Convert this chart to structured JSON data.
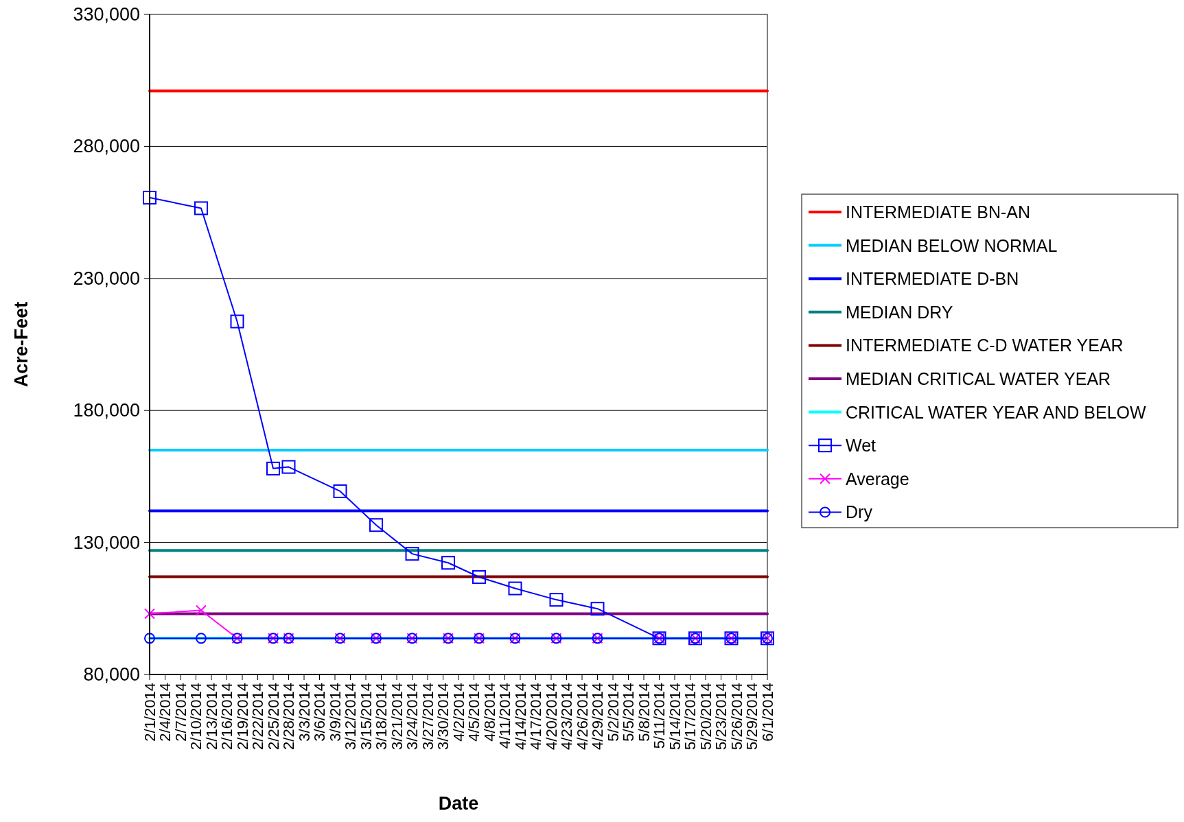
{
  "chart_data": {
    "type": "line",
    "xlabel": "Date",
    "ylabel": "Acre-Feet",
    "ylim": [
      80000,
      330000
    ],
    "yticks": [
      {
        "value": 80000,
        "label": "80,000"
      },
      {
        "value": 130000,
        "label": "130,000"
      },
      {
        "value": 180000,
        "label": "180,000"
      },
      {
        "value": 230000,
        "label": "230,000"
      },
      {
        "value": 280000,
        "label": "280,000"
      },
      {
        "value": 330000,
        "label": "330,000"
      }
    ],
    "xlim": [
      "2014-02-01",
      "2014-06-01"
    ],
    "xticks": [
      {
        "value": "2014-02-01",
        "label": "2/1/2014"
      },
      {
        "value": "2014-02-04",
        "label": "2/4/2014"
      },
      {
        "value": "2014-02-07",
        "label": "2/7/2014"
      },
      {
        "value": "2014-02-10",
        "label": "2/10/2014"
      },
      {
        "value": "2014-02-13",
        "label": "2/13/2014"
      },
      {
        "value": "2014-02-16",
        "label": "2/16/2014"
      },
      {
        "value": "2014-02-19",
        "label": "2/19/2014"
      },
      {
        "value": "2014-02-22",
        "label": "2/22/2014"
      },
      {
        "value": "2014-02-25",
        "label": "2/25/2014"
      },
      {
        "value": "2014-02-28",
        "label": "2/28/2014"
      },
      {
        "value": "2014-03-03",
        "label": "3/3/2014"
      },
      {
        "value": "2014-03-06",
        "label": "3/6/2014"
      },
      {
        "value": "2014-03-09",
        "label": "3/9/2014"
      },
      {
        "value": "2014-03-12",
        "label": "3/12/2014"
      },
      {
        "value": "2014-03-15",
        "label": "3/15/2014"
      },
      {
        "value": "2014-03-18",
        "label": "3/18/2014"
      },
      {
        "value": "2014-03-21",
        "label": "3/21/2014"
      },
      {
        "value": "2014-03-24",
        "label": "3/24/2014"
      },
      {
        "value": "2014-03-27",
        "label": "3/27/2014"
      },
      {
        "value": "2014-03-30",
        "label": "3/30/2014"
      },
      {
        "value": "2014-04-02",
        "label": "4/2/2014"
      },
      {
        "value": "2014-04-05",
        "label": "4/5/2014"
      },
      {
        "value": "2014-04-08",
        "label": "4/8/2014"
      },
      {
        "value": "2014-04-11",
        "label": "4/11/2014"
      },
      {
        "value": "2014-04-14",
        "label": "4/14/2014"
      },
      {
        "value": "2014-04-17",
        "label": "4/17/2014"
      },
      {
        "value": "2014-04-20",
        "label": "4/20/2014"
      },
      {
        "value": "2014-04-23",
        "label": "4/23/2014"
      },
      {
        "value": "2014-04-26",
        "label": "4/26/2014"
      },
      {
        "value": "2014-04-29",
        "label": "4/29/2014"
      },
      {
        "value": "2014-05-02",
        "label": "5/2/2014"
      },
      {
        "value": "2014-05-05",
        "label": "5/5/2014"
      },
      {
        "value": "2014-05-08",
        "label": "5/8/2014"
      },
      {
        "value": "2014-05-11",
        "label": "5/11/2014"
      },
      {
        "value": "2014-05-14",
        "label": "5/14/2014"
      },
      {
        "value": "2014-05-17",
        "label": "5/17/2014"
      },
      {
        "value": "2014-05-20",
        "label": "5/20/2014"
      },
      {
        "value": "2014-05-23",
        "label": "5/23/2014"
      },
      {
        "value": "2014-05-26",
        "label": "5/26/2014"
      },
      {
        "value": "2014-05-29",
        "label": "5/29/2014"
      },
      {
        "value": "2014-06-01",
        "label": "6/1/2014"
      }
    ],
    "grid": "y",
    "legend": "right",
    "x": [
      "2014-02-01",
      "2014-02-11",
      "2014-02-18",
      "2014-02-25",
      "2014-02-28",
      "2014-03-10",
      "2014-03-17",
      "2014-03-24",
      "2014-03-31",
      "2014-04-06",
      "2014-04-13",
      "2014-04-21",
      "2014-04-29",
      "2014-05-11",
      "2014-05-18",
      "2014-05-25",
      "2014-06-01"
    ],
    "series": [
      {
        "name": "INTERMEDIATE BN-AN",
        "color": "#ff0000",
        "marker": "none",
        "x": [
          "2014-02-01",
          "2014-06-01"
        ],
        "values": [
          301000,
          301000
        ]
      },
      {
        "name": "MEDIAN BELOW NORMAL",
        "color": "#00ccff",
        "marker": "none",
        "x": [
          "2014-02-01",
          "2014-06-01"
        ],
        "values": [
          165000,
          165000
        ]
      },
      {
        "name": "INTERMEDIATE D-BN",
        "color": "#0000ff",
        "marker": "none",
        "x": [
          "2014-02-01",
          "2014-06-01"
        ],
        "values": [
          142000,
          142000
        ]
      },
      {
        "name": "MEDIAN DRY",
        "color": "#008080",
        "marker": "none",
        "x": [
          "2014-02-01",
          "2014-06-01"
        ],
        "values": [
          127000,
          127000
        ]
      },
      {
        "name": "INTERMEDIATE C-D WATER YEAR",
        "color": "#800000",
        "marker": "none",
        "x": [
          "2014-02-01",
          "2014-06-01"
        ],
        "values": [
          117000,
          117000
        ]
      },
      {
        "name": "MEDIAN CRITICAL WATER YEAR",
        "color": "#800080",
        "marker": "none",
        "x": [
          "2014-02-01",
          "2014-06-01"
        ],
        "values": [
          103000,
          103000
        ]
      },
      {
        "name": "CRITICAL WATER YEAR AND BELOW",
        "color": "#00ffff",
        "marker": "none",
        "x": [
          "2014-02-01",
          "2014-06-01"
        ],
        "values": [
          93700,
          93700
        ]
      },
      {
        "name": "Wet",
        "color": "#0000ff",
        "marker": "square",
        "values": [
          260600,
          256600,
          213700,
          158000,
          158600,
          149400,
          136600,
          125700,
          122300,
          116900,
          112600,
          108300,
          104900,
          93700,
          93700,
          93700,
          93700
        ]
      },
      {
        "name": "Average",
        "color": "#ff00ff",
        "marker": "cross",
        "values": [
          103000,
          104300,
          93700,
          93700,
          93700,
          93700,
          93700,
          93700,
          93700,
          93700,
          93700,
          93700,
          93700,
          93700,
          93700,
          93700,
          93700
        ]
      },
      {
        "name": "Dry",
        "color": "#0000ff",
        "marker": "circle",
        "values": [
          93700,
          93700,
          93700,
          93700,
          93700,
          93700,
          93700,
          93700,
          93700,
          93700,
          93700,
          93700,
          93700,
          93700,
          93700,
          93700,
          93700
        ]
      }
    ]
  }
}
